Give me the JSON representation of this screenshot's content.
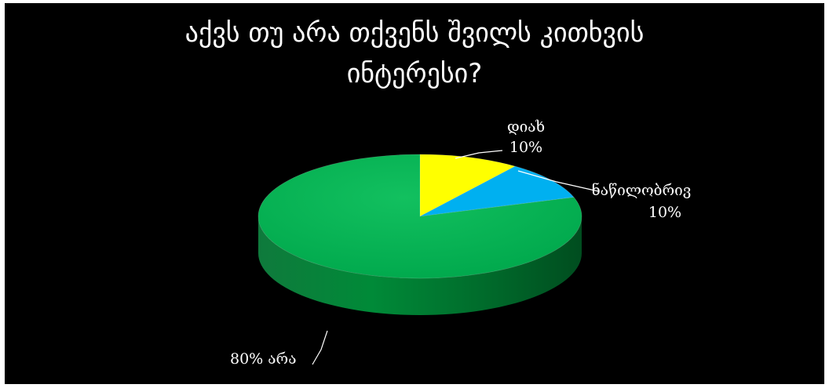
{
  "chart_data": {
    "type": "pie",
    "title_lines": [
      "აქვს თუ არა თქვენს შვილს კითხვის",
      "ინტერესი?"
    ],
    "slices": [
      {
        "name": "დიახ",
        "value": 10,
        "color": "#ffff00"
      },
      {
        "name": "ნაწილობრივ",
        "value": 10,
        "color": "#00b0f0"
      },
      {
        "name": "არა",
        "value": 80,
        "color": "#00b050"
      }
    ],
    "data_labels": [
      {
        "lines": [
          "დიახ",
          "10%"
        ]
      },
      {
        "lines": [
          "ნაწილობრივ",
          "10%"
        ]
      },
      {
        "lines": [
          "80% არა"
        ]
      }
    ],
    "background": "#000000"
  }
}
